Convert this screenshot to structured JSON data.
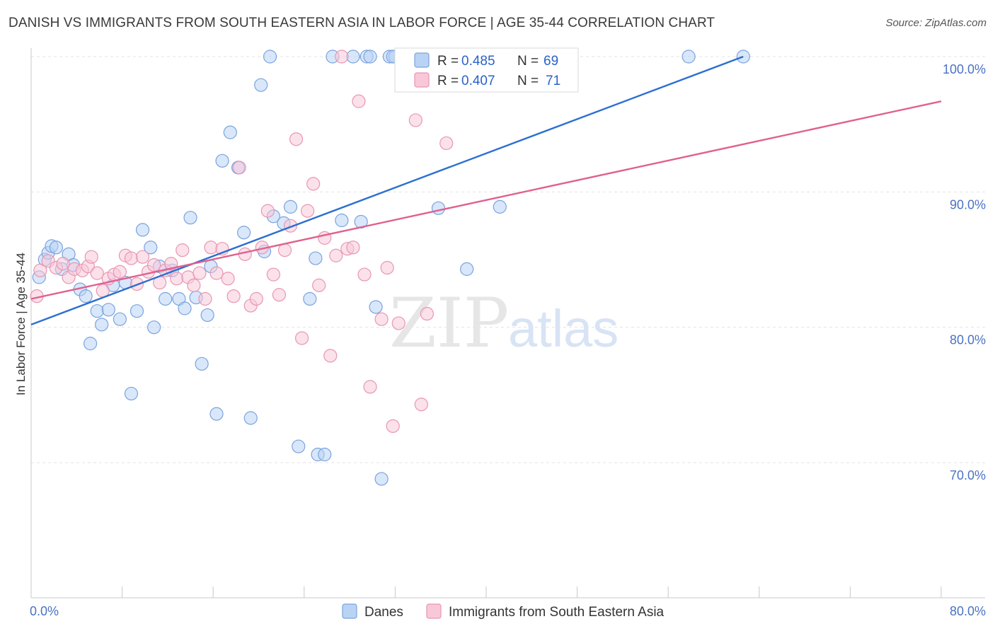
{
  "header": {
    "title": "DANISH VS IMMIGRANTS FROM SOUTH EASTERN ASIA IN LABOR FORCE | AGE 35-44 CORRELATION CHART",
    "source": "Source: ZipAtlas.com"
  },
  "watermark": {
    "zip": "ZIP",
    "atlas": "atlas"
  },
  "colors": {
    "blue_fill": "#b9d3f5",
    "blue_stroke": "#7aa3dd",
    "blue_line": "#2d6fd0",
    "pink_fill": "#f8c8d8",
    "pink_stroke": "#e896b2",
    "pink_line": "#e0608e",
    "grid": "#e3e3e3",
    "axis_label": "#4a72c4"
  },
  "legend": {
    "rows": [
      {
        "r_label": "R = ",
        "r_value": "0.485",
        "n_label": "N = ",
        "n_value": "69"
      },
      {
        "r_label": "R = ",
        "r_value": "0.407",
        "n_label": "N = ",
        "n_value": "71"
      }
    ]
  },
  "chart_data": {
    "type": "scatter",
    "title": "DANISH VS IMMIGRANTS FROM SOUTH EASTERN ASIA IN LABOR FORCE | AGE 35-44 CORRELATION CHART",
    "xlabel": "",
    "ylabel": "In Labor Force | Age 35-44",
    "xlim": [
      0,
      80
    ],
    "ylim": [
      60,
      101
    ],
    "x_tick_labels": [
      {
        "value": 0,
        "label": "0.0%"
      },
      {
        "value": 80,
        "label": "80.0%"
      }
    ],
    "y_tick_labels": [
      {
        "value": 70,
        "label": "70.0%"
      },
      {
        "value": 80,
        "label": "80.0%"
      },
      {
        "value": 90,
        "label": "90.0%"
      },
      {
        "value": 100,
        "label": "100.0%"
      }
    ],
    "grid": true,
    "legend_position": "top-center",
    "series": [
      {
        "name": "Danes",
        "r": 0.485,
        "n": 69,
        "trend": {
          "x": [
            0,
            62.6
          ],
          "y": [
            80.2,
            100.0
          ]
        },
        "points": [
          [
            0.7,
            83.7
          ],
          [
            1.2,
            85.0
          ],
          [
            1.5,
            85.5
          ],
          [
            1.8,
            86.0
          ],
          [
            2.2,
            85.9
          ],
          [
            2.7,
            84.3
          ],
          [
            3.3,
            85.4
          ],
          [
            3.7,
            84.6
          ],
          [
            4.3,
            82.8
          ],
          [
            4.8,
            82.3
          ],
          [
            5.2,
            78.8
          ],
          [
            5.8,
            81.2
          ],
          [
            6.2,
            80.2
          ],
          [
            6.8,
            81.3
          ],
          [
            7.2,
            83.1
          ],
          [
            7.8,
            80.6
          ],
          [
            8.3,
            83.3
          ],
          [
            8.8,
            75.1
          ],
          [
            9.3,
            81.2
          ],
          [
            9.8,
            87.2
          ],
          [
            10.5,
            85.9
          ],
          [
            10.8,
            80.0
          ],
          [
            11.3,
            84.5
          ],
          [
            11.8,
            82.1
          ],
          [
            12.4,
            84.2
          ],
          [
            13.0,
            82.1
          ],
          [
            13.5,
            81.4
          ],
          [
            14.0,
            88.1
          ],
          [
            14.5,
            82.2
          ],
          [
            15.0,
            77.3
          ],
          [
            15.5,
            80.9
          ],
          [
            15.8,
            84.5
          ],
          [
            16.3,
            73.6
          ],
          [
            16.8,
            92.3
          ],
          [
            17.5,
            94.4
          ],
          [
            18.2,
            91.8
          ],
          [
            18.7,
            87.0
          ],
          [
            19.3,
            73.3
          ],
          [
            20.2,
            97.9
          ],
          [
            20.5,
            85.6
          ],
          [
            21.0,
            100.0
          ],
          [
            21.3,
            88.2
          ],
          [
            22.2,
            87.7
          ],
          [
            22.8,
            88.9
          ],
          [
            23.5,
            71.2
          ],
          [
            24.5,
            82.1
          ],
          [
            25.0,
            85.1
          ],
          [
            25.2,
            70.6
          ],
          [
            25.8,
            70.6
          ],
          [
            26.5,
            100.0
          ],
          [
            27.3,
            87.9
          ],
          [
            28.3,
            100.0
          ],
          [
            29.0,
            87.8
          ],
          [
            29.5,
            100.0
          ],
          [
            30.3,
            81.5
          ],
          [
            30.8,
            68.8
          ],
          [
            31.5,
            100.0
          ],
          [
            32.0,
            100.0
          ],
          [
            33.0,
            100.0
          ],
          [
            35.8,
            88.8
          ],
          [
            37.3,
            100.0
          ],
          [
            38.3,
            84.3
          ],
          [
            41.2,
            88.9
          ],
          [
            44.5,
            100.0
          ],
          [
            47.5,
            100.0
          ],
          [
            57.8,
            100.0
          ],
          [
            62.6,
            100.0
          ],
          [
            31.8,
            100.0
          ],
          [
            29.8,
            100.0
          ]
        ]
      },
      {
        "name": "Immigrants from South Eastern Asia",
        "r": 0.407,
        "n": 71,
        "trend": {
          "x": [
            0,
            80
          ],
          "y": [
            82.1,
            96.7
          ]
        },
        "points": [
          [
            0.5,
            82.3
          ],
          [
            0.8,
            84.2
          ],
          [
            1.5,
            84.9
          ],
          [
            2.2,
            84.4
          ],
          [
            2.8,
            84.7
          ],
          [
            3.3,
            83.7
          ],
          [
            3.8,
            84.3
          ],
          [
            4.5,
            84.2
          ],
          [
            5.0,
            84.5
          ],
          [
            5.3,
            85.2
          ],
          [
            5.8,
            84.0
          ],
          [
            6.3,
            82.7
          ],
          [
            6.8,
            83.6
          ],
          [
            7.3,
            83.9
          ],
          [
            7.8,
            84.1
          ],
          [
            8.3,
            85.3
          ],
          [
            8.8,
            85.1
          ],
          [
            9.3,
            83.2
          ],
          [
            9.8,
            85.2
          ],
          [
            10.3,
            84.1
          ],
          [
            10.8,
            84.6
          ],
          [
            11.3,
            83.3
          ],
          [
            11.8,
            84.2
          ],
          [
            12.3,
            84.7
          ],
          [
            12.8,
            83.6
          ],
          [
            13.3,
            85.7
          ],
          [
            13.8,
            83.7
          ],
          [
            14.3,
            83.1
          ],
          [
            14.8,
            84.0
          ],
          [
            15.3,
            82.1
          ],
          [
            15.8,
            85.9
          ],
          [
            16.3,
            84.0
          ],
          [
            16.8,
            85.8
          ],
          [
            17.3,
            83.6
          ],
          [
            17.8,
            82.3
          ],
          [
            18.3,
            91.8
          ],
          [
            18.8,
            85.4
          ],
          [
            19.3,
            81.6
          ],
          [
            19.8,
            82.1
          ],
          [
            20.3,
            85.9
          ],
          [
            20.8,
            88.6
          ],
          [
            21.3,
            83.9
          ],
          [
            21.8,
            82.4
          ],
          [
            22.3,
            85.7
          ],
          [
            22.8,
            87.5
          ],
          [
            23.3,
            93.9
          ],
          [
            23.8,
            79.2
          ],
          [
            24.3,
            88.6
          ],
          [
            24.8,
            90.6
          ],
          [
            25.3,
            83.1
          ],
          [
            25.8,
            86.6
          ],
          [
            26.3,
            77.9
          ],
          [
            26.8,
            85.3
          ],
          [
            27.3,
            100.0
          ],
          [
            27.8,
            85.8
          ],
          [
            28.3,
            85.9
          ],
          [
            28.8,
            96.7
          ],
          [
            29.3,
            83.9
          ],
          [
            29.8,
            75.6
          ],
          [
            30.8,
            80.6
          ],
          [
            31.3,
            84.4
          ],
          [
            31.8,
            72.7
          ],
          [
            32.3,
            80.3
          ],
          [
            32.8,
            100.0
          ],
          [
            33.8,
            95.3
          ],
          [
            34.3,
            74.3
          ],
          [
            34.8,
            81.0
          ],
          [
            36.5,
            93.6
          ],
          [
            40.3,
            100.0
          ],
          [
            43.8,
            100.0
          ],
          [
            47.0,
            100.0
          ]
        ]
      }
    ]
  }
}
